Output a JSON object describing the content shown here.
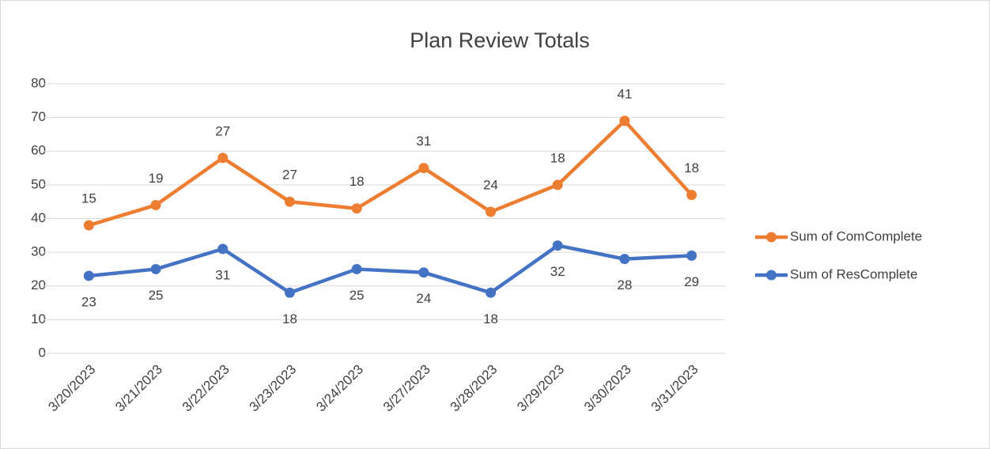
{
  "chart_data": {
    "type": "line",
    "stacked": true,
    "title": "Plan Review Totals",
    "categories": [
      "3/20/2023",
      "3/21/2023",
      "3/22/2023",
      "3/23/2023",
      "3/24/2023",
      "3/27/2023",
      "3/28/2023",
      "3/29/2023",
      "3/30/2023",
      "3/31/2023"
    ],
    "series": [
      {
        "name": "Sum of ResComplete",
        "color": "#4472c4",
        "values": [
          23,
          25,
          31,
          18,
          25,
          24,
          18,
          32,
          28,
          29
        ]
      },
      {
        "name": "Sum of ComComplete",
        "color": "#ed7d31",
        "values": [
          15,
          19,
          27,
          27,
          18,
          31,
          24,
          18,
          41,
          18
        ]
      }
    ],
    "ylim": [
      0,
      80
    ],
    "yticks": [
      0,
      10,
      20,
      30,
      40,
      50,
      60,
      70,
      80
    ],
    "grid": true,
    "legend": "right"
  }
}
